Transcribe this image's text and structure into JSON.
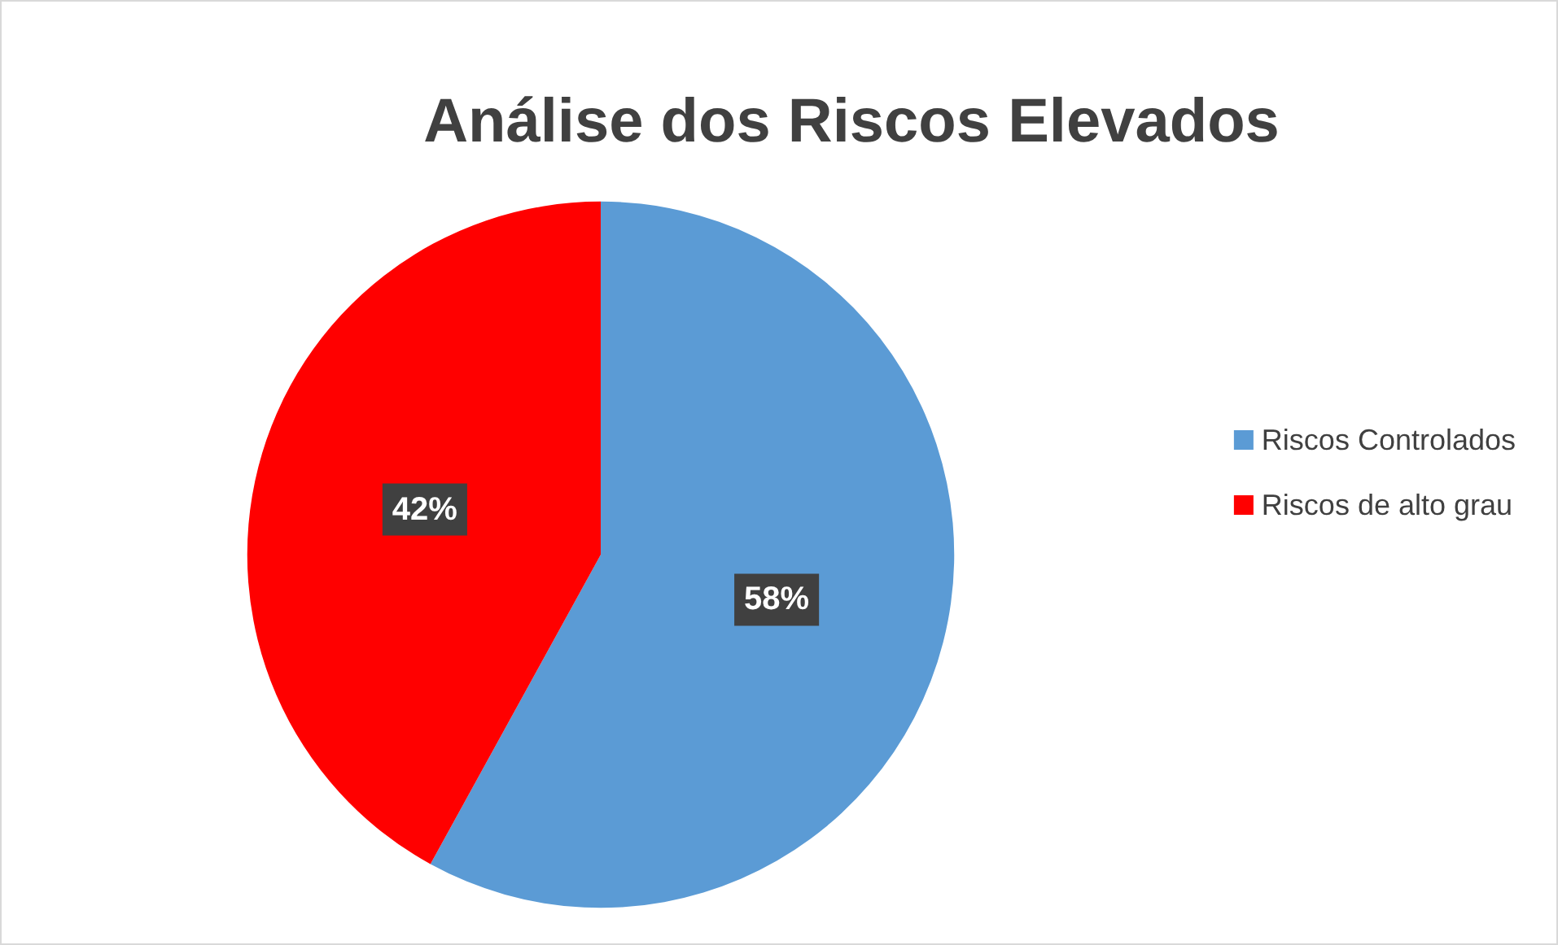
{
  "chart_data": {
    "type": "pie",
    "title": "Análise dos Riscos Elevados",
    "categories": [
      "Riscos Controlados",
      "Riscos de alto grau"
    ],
    "values": [
      58,
      42
    ],
    "colors": [
      "#5b9bd5",
      "#ff0000"
    ],
    "value_labels": [
      "58%",
      "42%"
    ],
    "legend": "right"
  }
}
